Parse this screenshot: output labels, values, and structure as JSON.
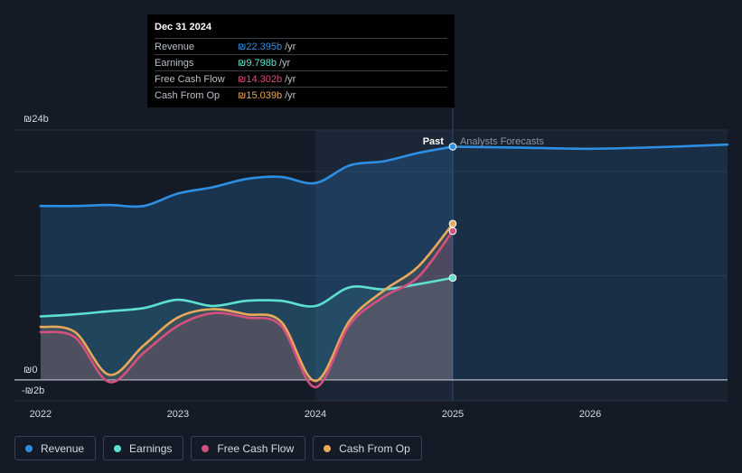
{
  "tooltip": {
    "date": "Dec 31 2024",
    "rows": [
      {
        "label": "Revenue",
        "value": "₪22.395b",
        "unit": "/yr",
        "color": "#2d8fe3"
      },
      {
        "label": "Earnings",
        "value": "₪9.798b",
        "unit": "/yr",
        "color": "#5ee0d0"
      },
      {
        "label": "Free Cash Flow",
        "value": "₪14.302b",
        "unit": "/yr",
        "color": "#d6507f"
      },
      {
        "label": "Cash From Op",
        "value": "₪15.039b",
        "unit": "/yr",
        "color": "#e8a95a"
      }
    ]
  },
  "labels": {
    "past": "Past",
    "forecast": "Analysts Forecasts"
  },
  "legend": [
    {
      "label": "Revenue",
      "color": "#2d8fe3"
    },
    {
      "label": "Earnings",
      "color": "#5ee0d0"
    },
    {
      "label": "Free Cash Flow",
      "color": "#d6507f"
    },
    {
      "label": "Cash From Op",
      "color": "#e8a95a"
    }
  ],
  "chart_data": {
    "type": "line",
    "unit": "₪b",
    "ylim": [
      -2,
      24
    ],
    "y_ticks": [
      {
        "value": 24,
        "label": "₪24b"
      },
      {
        "value": 0,
        "label": "₪0"
      },
      {
        "value": -2,
        "label": "-₪2b"
      }
    ],
    "x_ticks": [
      {
        "value": 2022,
        "label": "2022"
      },
      {
        "value": 2023,
        "label": "2023"
      },
      {
        "value": 2024,
        "label": "2024"
      },
      {
        "value": 2025,
        "label": "2025"
      },
      {
        "value": 2026,
        "label": "2026"
      }
    ],
    "xlim": [
      2021.81,
      2027.0
    ],
    "past_end": 2025.0,
    "grid": true,
    "series": [
      {
        "name": "Revenue",
        "color": "#2d8fe3",
        "x": [
          2022.0,
          2022.25,
          2022.5,
          2022.75,
          2023.0,
          2023.25,
          2023.5,
          2023.75,
          2024.0,
          2024.25,
          2024.5,
          2024.75,
          2025.0
        ],
        "y": [
          16.7,
          16.7,
          16.8,
          16.7,
          17.9,
          18.5,
          19.3,
          19.5,
          18.9,
          20.6,
          21.0,
          21.8,
          22.4
        ]
      },
      {
        "name": "Revenue forecast",
        "color": "#2d8fe3",
        "x": [
          2025.0,
          2025.5,
          2026.0,
          2026.5,
          2027.0
        ],
        "y": [
          22.4,
          22.3,
          22.2,
          22.35,
          22.6
        ]
      },
      {
        "name": "Earnings",
        "color": "#5ee0d0",
        "x": [
          2022.0,
          2022.25,
          2022.5,
          2022.75,
          2023.0,
          2023.25,
          2023.5,
          2023.75,
          2024.0,
          2024.25,
          2024.5,
          2024.75,
          2025.0
        ],
        "y": [
          6.1,
          6.3,
          6.6,
          6.9,
          7.7,
          7.1,
          7.6,
          7.6,
          7.1,
          8.9,
          8.7,
          9.2,
          9.8
        ]
      },
      {
        "name": "Free Cash Flow",
        "color": "#d6507f",
        "x": [
          2022.0,
          2022.25,
          2022.5,
          2022.75,
          2023.0,
          2023.25,
          2023.5,
          2023.75,
          2024.0,
          2024.25,
          2024.5,
          2024.75,
          2025.0
        ],
        "y": [
          4.6,
          4.1,
          -0.2,
          2.6,
          5.2,
          6.4,
          6.0,
          5.2,
          -0.7,
          5.3,
          8.0,
          9.9,
          14.3
        ]
      },
      {
        "name": "Cash From Op",
        "color": "#e8a95a",
        "x": [
          2022.0,
          2022.25,
          2022.5,
          2022.75,
          2023.0,
          2023.25,
          2023.5,
          2023.75,
          2024.0,
          2024.25,
          2024.5,
          2024.75,
          2025.0
        ],
        "y": [
          5.1,
          4.6,
          0.5,
          3.3,
          6.0,
          6.8,
          6.3,
          5.6,
          -0.1,
          5.7,
          8.6,
          10.9,
          15.0
        ]
      }
    ],
    "tooltip_points": [
      {
        "name": "Revenue",
        "x": 2025.0,
        "y": 22.4
      },
      {
        "name": "Earnings",
        "x": 2025.0,
        "y": 9.8
      },
      {
        "name": "Free Cash Flow",
        "x": 2025.0,
        "y": 14.3
      },
      {
        "name": "Cash From Op",
        "x": 2025.0,
        "y": 15.0
      }
    ]
  }
}
